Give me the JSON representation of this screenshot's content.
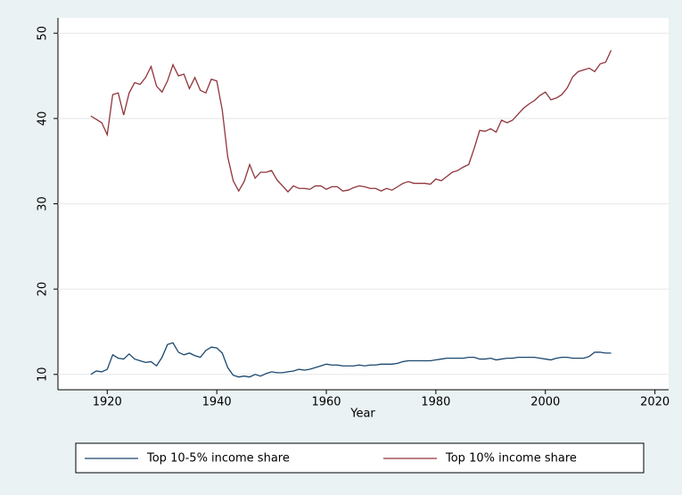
{
  "chart_data": {
    "type": "line",
    "x_label": "Year",
    "x": [
      1917,
      1918,
      1919,
      1920,
      1921,
      1922,
      1923,
      1924,
      1925,
      1926,
      1927,
      1928,
      1929,
      1930,
      1931,
      1932,
      1933,
      1934,
      1935,
      1936,
      1937,
      1938,
      1939,
      1940,
      1941,
      1942,
      1943,
      1944,
      1945,
      1946,
      1947,
      1948,
      1949,
      1950,
      1951,
      1952,
      1953,
      1954,
      1955,
      1956,
      1957,
      1958,
      1959,
      1960,
      1961,
      1962,
      1963,
      1964,
      1965,
      1966,
      1967,
      1968,
      1969,
      1970,
      1971,
      1972,
      1973,
      1974,
      1975,
      1976,
      1977,
      1978,
      1979,
      1980,
      1981,
      1982,
      1983,
      1984,
      1985,
      1986,
      1987,
      1988,
      1989,
      1990,
      1991,
      1992,
      1993,
      1994,
      1995,
      1996,
      1997,
      1998,
      1999,
      2000,
      2001,
      2002,
      2003,
      2004,
      2005,
      2006,
      2007,
      2008,
      2009,
      2010,
      2011,
      2012
    ],
    "series": [
      {
        "name": "Top 10-5% income share",
        "color": "#1a476f",
        "values": [
          10.0,
          10.4,
          10.3,
          10.6,
          12.3,
          11.9,
          11.8,
          12.4,
          11.8,
          11.6,
          11.4,
          11.5,
          11.0,
          12.0,
          13.5,
          13.7,
          12.6,
          12.3,
          12.5,
          12.2,
          12.0,
          12.8,
          13.2,
          13.1,
          12.5,
          10.8,
          9.9,
          9.7,
          9.8,
          9.7,
          10.0,
          9.8,
          10.1,
          10.3,
          10.2,
          10.2,
          10.3,
          10.4,
          10.6,
          10.5,
          10.6,
          10.8,
          11.0,
          11.2,
          11.1,
          11.1,
          11.0,
          11.0,
          11.0,
          11.1,
          11.0,
          11.1,
          11.1,
          11.2,
          11.2,
          11.2,
          11.3,
          11.5,
          11.6,
          11.6,
          11.6,
          11.6,
          11.6,
          11.7,
          11.8,
          11.9,
          11.9,
          11.9,
          11.9,
          12.0,
          12.0,
          11.8,
          11.8,
          11.9,
          11.7,
          11.8,
          11.9,
          11.9,
          12.0,
          12.0,
          12.0,
          12.0,
          11.9,
          11.8,
          11.7,
          11.9,
          12.0,
          12.0,
          11.9,
          11.9,
          11.9,
          12.1,
          12.6,
          12.6,
          12.5,
          12.5
        ]
      },
      {
        "name": "Top 10% income share",
        "color": "#90353b",
        "values": [
          40.3,
          39.9,
          39.5,
          38.1,
          42.8,
          43.0,
          40.4,
          43.0,
          44.2,
          44.0,
          44.8,
          46.1,
          43.8,
          43.1,
          44.4,
          46.3,
          45.0,
          45.2,
          43.5,
          44.8,
          43.3,
          43.0,
          44.6,
          44.4,
          41.0,
          35.5,
          32.7,
          31.5,
          32.6,
          34.6,
          33.0,
          33.7,
          33.7,
          33.9,
          32.8,
          32.1,
          31.4,
          32.1,
          31.8,
          31.8,
          31.7,
          32.1,
          32.1,
          31.7,
          32.0,
          32.0,
          31.5,
          31.6,
          31.9,
          32.1,
          32.0,
          31.8,
          31.8,
          31.5,
          31.8,
          31.6,
          32.0,
          32.4,
          32.6,
          32.4,
          32.4,
          32.4,
          32.3,
          32.9,
          32.7,
          33.2,
          33.7,
          33.9,
          34.3,
          34.6,
          36.5,
          38.6,
          38.5,
          38.8,
          38.4,
          39.8,
          39.5,
          39.8,
          40.5,
          41.2,
          41.7,
          42.1,
          42.7,
          43.1,
          42.2,
          42.4,
          42.8,
          43.6,
          44.9,
          45.5,
          45.7,
          45.9,
          45.5,
          46.4,
          46.6,
          48.0
        ]
      }
    ],
    "xlim": [
      1911,
      2022.5
    ],
    "xticks": [
      1920,
      1940,
      1960,
      1980,
      2000,
      2020
    ],
    "ylim": [
      8.2,
      51.8
    ],
    "yticks": [
      10,
      20,
      30,
      40,
      50
    ],
    "grid": true,
    "legend_position": "bottom"
  }
}
